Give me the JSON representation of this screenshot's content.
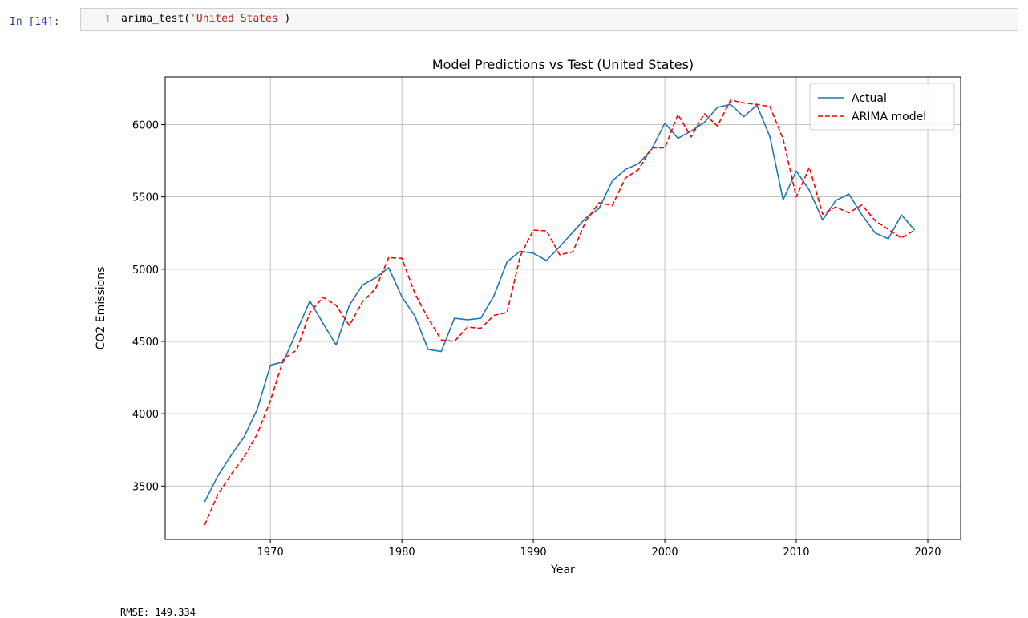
{
  "cell": {
    "prompt": "In [14]:",
    "line_number": "1",
    "code_func": "arima_test(",
    "code_arg": "'United States'",
    "code_close": ")"
  },
  "output": {
    "text": "RMSE: 149.334"
  },
  "chart_data": {
    "type": "line",
    "title": "Model Predictions vs Test (United States)",
    "xlabel": "Year",
    "ylabel": "CO2 Emissions",
    "xlim": [
      1962,
      2022.5
    ],
    "ylim": [
      3130,
      6330
    ],
    "xticks": [
      1970,
      1980,
      1990,
      2000,
      2010,
      2020
    ],
    "yticks": [
      3500,
      4000,
      4500,
      5000,
      5500,
      6000
    ],
    "grid": true,
    "legend": "top-right",
    "x": [
      1965,
      1966,
      1967,
      1968,
      1969,
      1970,
      1971,
      1972,
      1973,
      1974,
      1975,
      1976,
      1977,
      1978,
      1979,
      1980,
      1981,
      1982,
      1983,
      1984,
      1985,
      1986,
      1987,
      1988,
      1989,
      1990,
      1991,
      1992,
      1993,
      1994,
      1995,
      1996,
      1997,
      1998,
      1999,
      2000,
      2001,
      2002,
      2003,
      2004,
      2005,
      2006,
      2007,
      2008,
      2009,
      2010,
      2011,
      2012,
      2013,
      2014,
      2015,
      2016,
      2017,
      2018,
      2019
    ],
    "series": [
      {
        "name": "Actual",
        "color": "#1f77b4",
        "dash": false,
        "values": [
          3390,
          3570,
          3710,
          3840,
          4030,
          4335,
          4360,
          4570,
          4780,
          4625,
          4475,
          4750,
          4890,
          4940,
          5010,
          4810,
          4675,
          4445,
          4430,
          4660,
          4650,
          4660,
          4815,
          5050,
          5125,
          5110,
          5060,
          5155,
          5255,
          5355,
          5420,
          5610,
          5690,
          5730,
          5830,
          6010,
          5905,
          5955,
          6015,
          6120,
          6140,
          6055,
          6135,
          5915,
          5480,
          5680,
          5545,
          5340,
          5475,
          5520,
          5375,
          5250,
          5210,
          5375,
          5270
        ]
      },
      {
        "name": "ARIMA model",
        "color": "#ff0000",
        "dash": true,
        "values": [
          3230,
          3440,
          3580,
          3700,
          3860,
          4090,
          4380,
          4440,
          4700,
          4805,
          4750,
          4610,
          4775,
          4865,
          5080,
          5075,
          4830,
          4660,
          4510,
          4500,
          4600,
          4590,
          4680,
          4700,
          5090,
          5270,
          5265,
          5100,
          5120,
          5335,
          5460,
          5440,
          5630,
          5690,
          5840,
          5840,
          6070,
          5915,
          6075,
          5990,
          6170,
          6150,
          6140,
          6125,
          5900,
          5500,
          5705,
          5380,
          5430,
          5390,
          5445,
          5335,
          5275,
          5215,
          5270
        ]
      }
    ]
  }
}
